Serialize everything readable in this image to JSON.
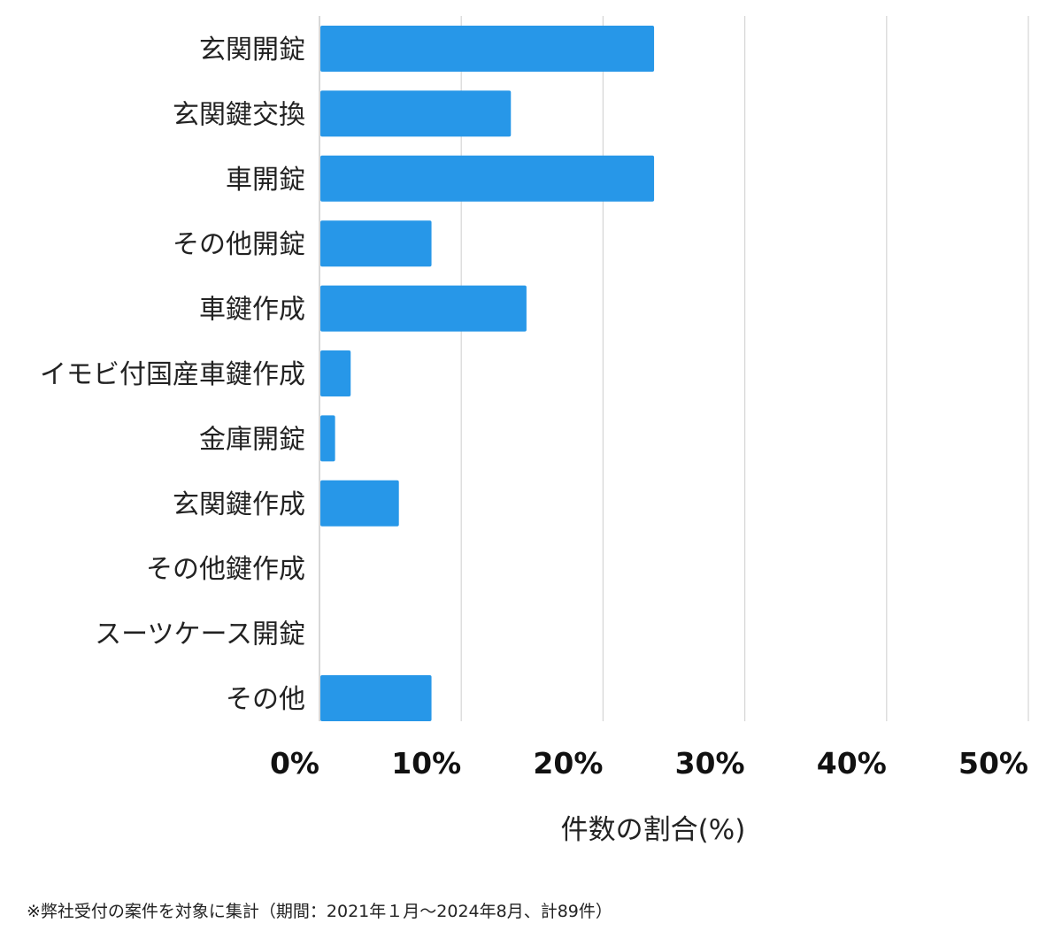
{
  "chart_data": {
    "type": "bar",
    "orientation": "horizontal",
    "categories": [
      "玄関開錠",
      "玄関鍵交換",
      "車開錠",
      "その他開錠",
      "車鍵作成",
      "イモビ付国産車鍵作成",
      "金庫開錠",
      "玄関鍵作成",
      "その他鍵作成",
      "スーツケース開錠",
      "その他"
    ],
    "values": [
      23.6,
      13.5,
      23.6,
      7.9,
      14.6,
      2.2,
      1.1,
      5.6,
      0,
      0,
      7.9
    ],
    "xlim": [
      0,
      50
    ],
    "ticks": [
      0,
      10,
      20,
      30,
      40,
      50
    ],
    "tick_labels": [
      "0%",
      "10%",
      "20%",
      "30%",
      "40%",
      "50%"
    ],
    "xlabel": "件数の割合(%)",
    "ylabel": "",
    "title": "",
    "grid": true,
    "bar_color": "#2797E8"
  },
  "footnote": "※弊社受付の案件を対象に集計（期間：2021年１月〜2024年8月、計89件）"
}
